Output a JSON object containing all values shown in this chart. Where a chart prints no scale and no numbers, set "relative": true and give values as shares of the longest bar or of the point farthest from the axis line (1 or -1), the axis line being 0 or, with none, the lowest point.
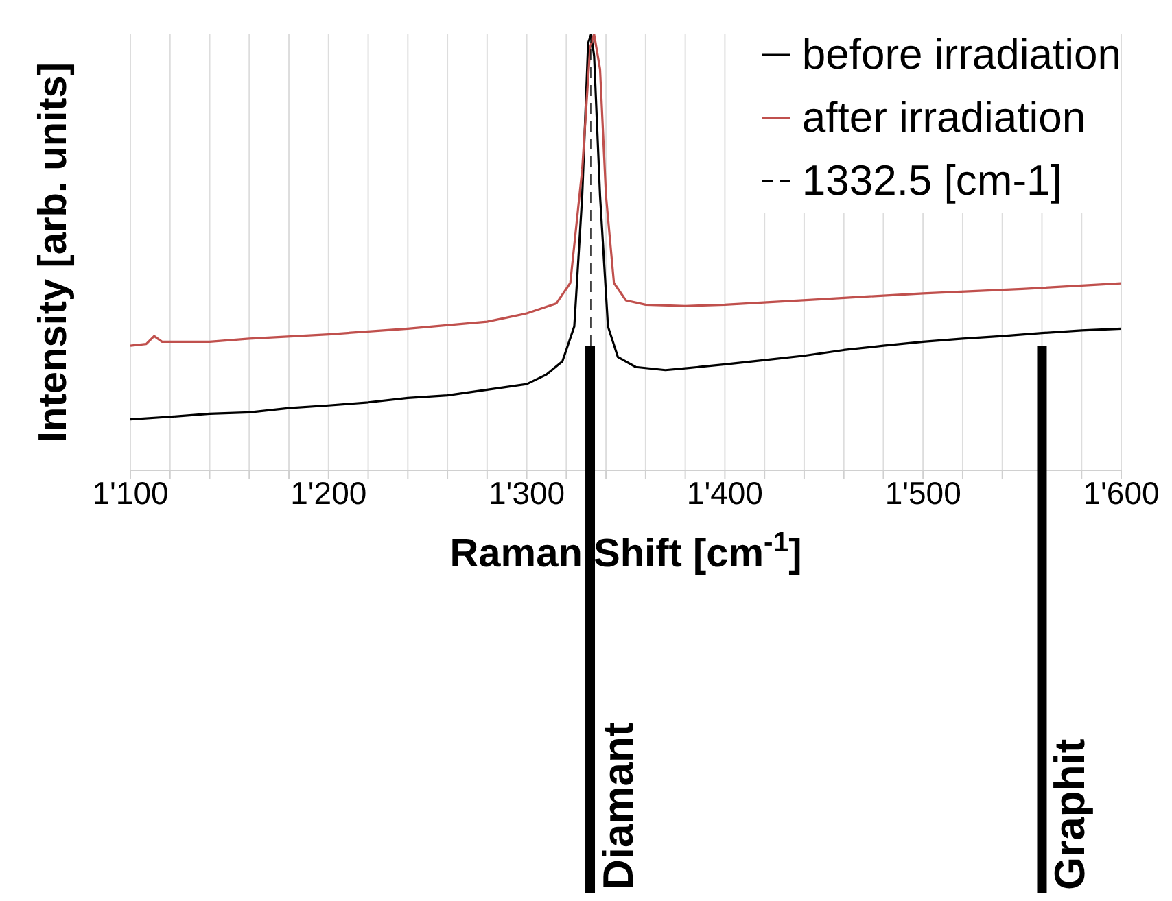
{
  "chart_data": {
    "type": "line",
    "xlabel": "Raman Shift [cm$^{-1}$]",
    "ylabel": "Intensity [arb. units]",
    "relative": true,
    "xlim": [
      1100,
      1600
    ],
    "xticks": [
      {
        "value": 1100,
        "label": "1'100"
      },
      {
        "value": 1120,
        "label": null
      },
      {
        "value": 1140,
        "label": null
      },
      {
        "value": 1160,
        "label": null
      },
      {
        "value": 1180,
        "label": null
      },
      {
        "value": 1200,
        "label": "1'200"
      },
      {
        "value": 1220,
        "label": null
      },
      {
        "value": 1240,
        "label": null
      },
      {
        "value": 1260,
        "label": null
      },
      {
        "value": 1280,
        "label": null
      },
      {
        "value": 1300,
        "label": "1'300"
      },
      {
        "value": 1320,
        "label": null
      },
      {
        "value": 1340,
        "label": null
      },
      {
        "value": 1360,
        "label": null
      },
      {
        "value": 1380,
        "label": null
      },
      {
        "value": 1400,
        "label": "1'400"
      },
      {
        "value": 1420,
        "label": null
      },
      {
        "value": 1440,
        "label": null
      },
      {
        "value": 1460,
        "label": null
      },
      {
        "value": 1480,
        "label": null
      },
      {
        "value": 1500,
        "label": "1'500"
      },
      {
        "value": 1520,
        "label": null
      },
      {
        "value": 1540,
        "label": null
      },
      {
        "value": 1560,
        "label": null
      },
      {
        "value": 1580,
        "label": null
      },
      {
        "value": 1600,
        "label": "1'600"
      }
    ],
    "grid": "x",
    "legend": "top right",
    "marker": "none",
    "line_style": "solid",
    "series": [
      {
        "name": "before irradiation",
        "color": "#000000",
        "x": [
          1100,
          1120,
          1140,
          1160,
          1180,
          1200,
          1220,
          1240,
          1260,
          1280,
          1300,
          1310,
          1318,
          1324,
          1328,
          1331,
          1332.5,
          1334,
          1337,
          1341,
          1346,
          1355,
          1370,
          1380,
          1400,
          1420,
          1440,
          1460,
          1480,
          1500,
          1520,
          1540,
          1560,
          1580,
          1600
        ],
        "values": [
          0.117,
          0.123,
          0.13,
          0.133,
          0.143,
          0.149,
          0.156,
          0.166,
          0.172,
          0.185,
          0.198,
          0.22,
          0.25,
          0.33,
          0.63,
          0.98,
          1,
          0.95,
          0.63,
          0.33,
          0.26,
          0.237,
          0.23,
          0.234,
          0.243,
          0.253,
          0.263,
          0.276,
          0.286,
          0.295,
          0.302,
          0.308,
          0.315,
          0.321,
          0.325
        ]
      },
      {
        "name": "after irradiation",
        "color": "#c0504d",
        "x": [
          1100,
          1108,
          1112,
          1116,
          1120,
          1140,
          1160,
          1200,
          1240,
          1280,
          1300,
          1315,
          1322,
          1328,
          1332,
          1334,
          1337,
          1340,
          1344,
          1350,
          1360,
          1380,
          1400,
          1450,
          1500,
          1550,
          1600
        ],
        "values": [
          0.286,
          0.29,
          0.308,
          0.295,
          0.295,
          0.295,
          0.302,
          0.312,
          0.325,
          0.341,
          0.36,
          0.383,
          0.43,
          0.69,
          0.97,
          1,
          0.92,
          0.63,
          0.43,
          0.39,
          0.38,
          0.377,
          0.38,
          0.393,
          0.406,
          0.416,
          0.429
        ]
      },
      {
        "name": "1332.5 [cm-1]",
        "color": "#000000",
        "line_style": "dashed",
        "x": [
          1332.5,
          1332.5
        ],
        "values": [
          0,
          1
        ]
      }
    ],
    "ref_lines": [
      {
        "axis": "x",
        "value": 1332,
        "label": "Diamant",
        "color": "#000000",
        "line_style": "solid"
      },
      {
        "axis": "x",
        "value": 1560,
        "label": "Graphit",
        "color": "#000000",
        "line_style": "solid"
      }
    ]
  }
}
